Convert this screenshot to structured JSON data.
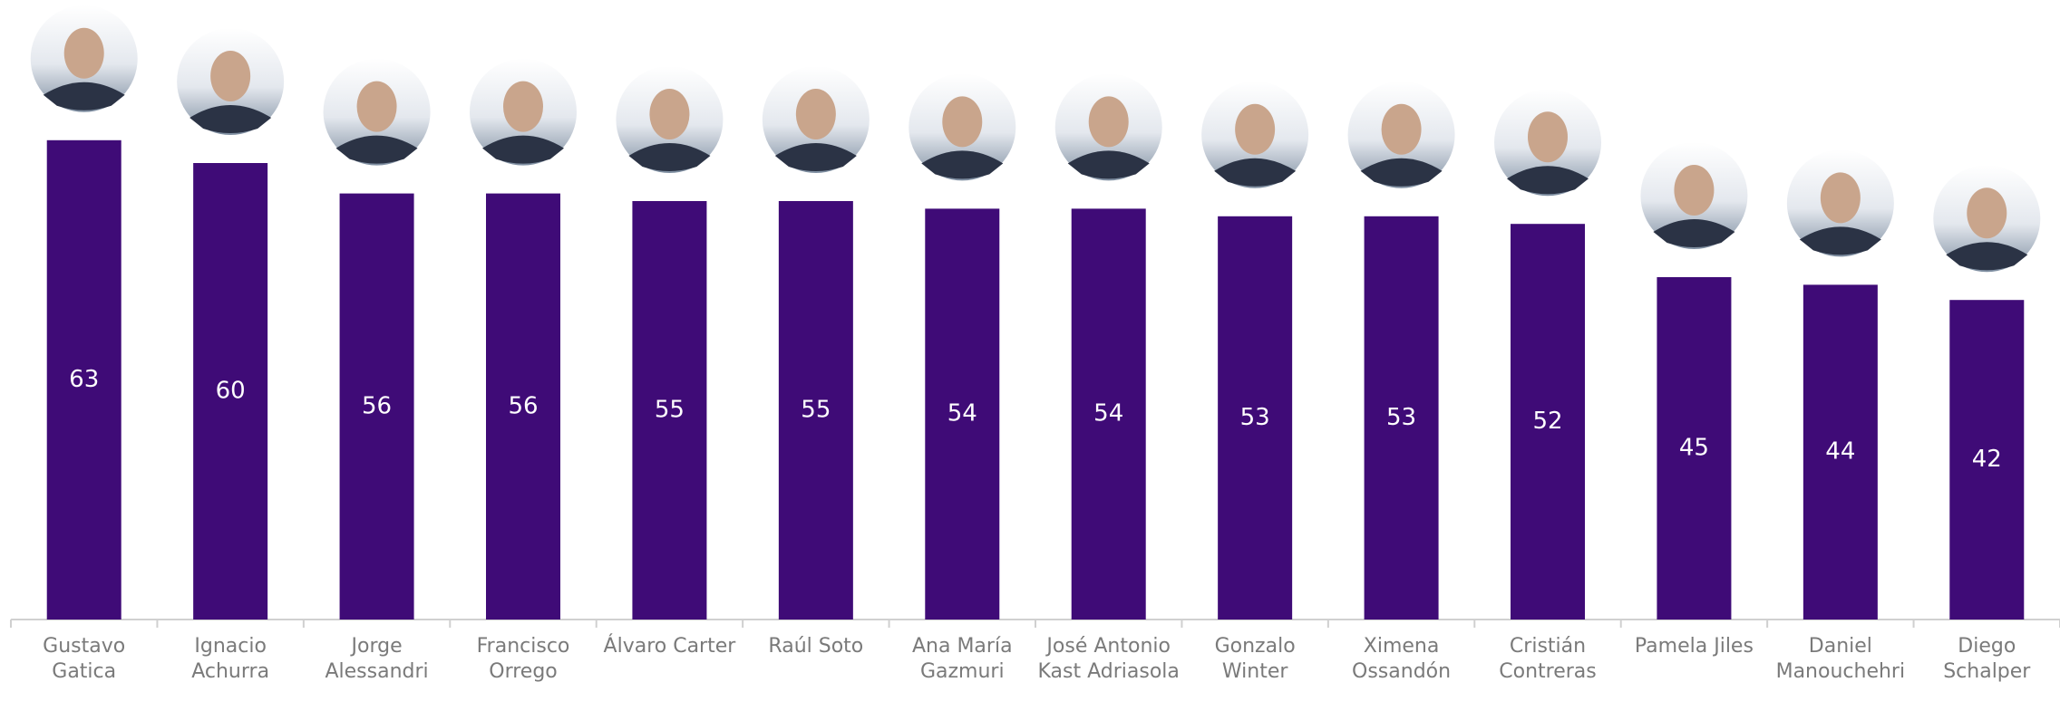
{
  "chart_data": {
    "type": "bar",
    "categories": [
      "Gustavo Gatica",
      "Ignacio Achurra",
      "Jorge Alessandri",
      "Francisco Orrego",
      "Álvaro Carter",
      "Raúl Soto",
      "Ana María Gazmuri",
      "José Antonio Kast Adriasola",
      "Gonzalo Winter",
      "Ximena Ossandón",
      "Cristián Contreras",
      "Pamela Jiles",
      "Daniel Manouchehri",
      "Diego Schalper"
    ],
    "values": [
      63,
      60,
      56,
      56,
      55,
      55,
      54,
      54,
      53,
      53,
      52,
      45,
      44,
      42
    ],
    "color": "#3f0b77"
  }
}
